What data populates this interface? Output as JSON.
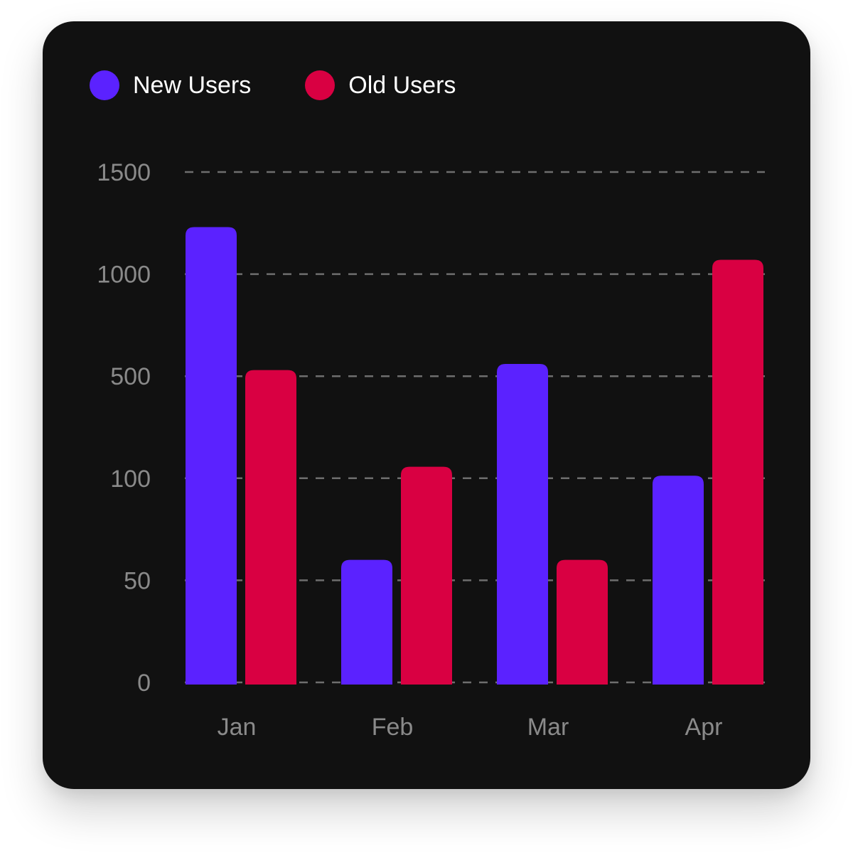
{
  "legend": [
    {
      "label": "New Users",
      "color": "#5b22ff"
    },
    {
      "label": "Old Users",
      "color": "#d90042"
    }
  ],
  "chart_data": {
    "type": "bar",
    "title": "",
    "xlabel": "",
    "ylabel": "",
    "categories": [
      "Jan",
      "Feb",
      "Mar",
      "Apr"
    ],
    "yticks": [
      0,
      50,
      100,
      500,
      1000,
      1500
    ],
    "ylim": [
      0,
      1500
    ],
    "scale": "piecewise",
    "grid": true,
    "legend_position": "top-left",
    "series": [
      {
        "name": "New Users",
        "color": "#5b22ff",
        "values": [
          1230,
          60,
          560,
          110
        ]
      },
      {
        "name": "Old Users",
        "color": "#d90042",
        "values": [
          530,
          145,
          60,
          1070
        ]
      }
    ]
  }
}
